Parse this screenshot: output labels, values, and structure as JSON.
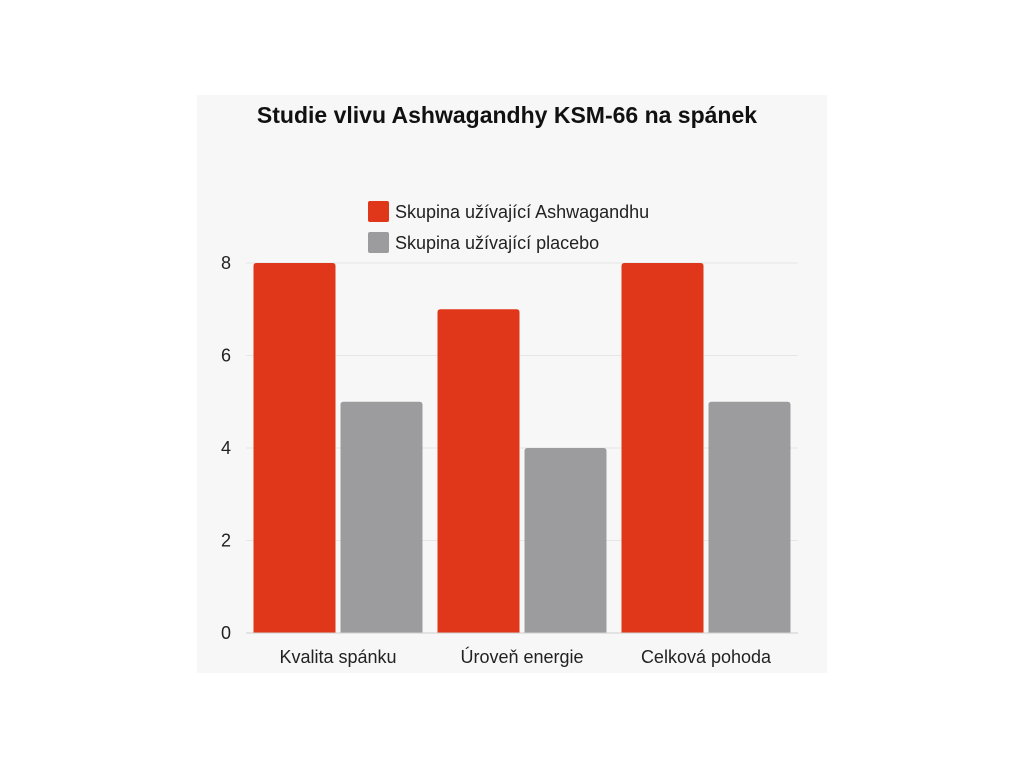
{
  "chart_data": {
    "type": "bar",
    "title": "Studie vlivu Ashwagandhy KSM-66 na spánek",
    "categories": [
      "Kvalita spánku",
      "Úroveň energie",
      "Celková pohoda"
    ],
    "series": [
      {
        "name": "Skupina užívající Ashwagandhu",
        "values": [
          8,
          7,
          8
        ],
        "color": "#e0361a"
      },
      {
        "name": "Skupina užívající placebo",
        "values": [
          5,
          4,
          5
        ],
        "color": "#9c9c9f"
      }
    ],
    "y_ticks": [
      0,
      2,
      4,
      6,
      8
    ],
    "ylim": [
      0,
      8
    ],
    "grid": true,
    "legend_position": "top-center"
  }
}
